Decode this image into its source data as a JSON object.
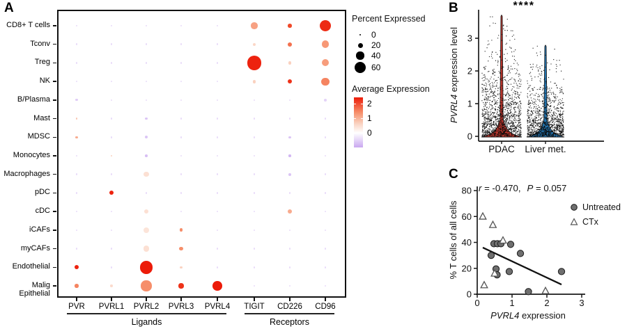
{
  "figure": {
    "panels": {
      "a": "A",
      "b": "B",
      "c": "C"
    }
  },
  "chart_data": [
    {
      "type": "bubble",
      "panel": "A",
      "rows": [
        "CD8+ T cells",
        "Tconv",
        "Treg",
        "NK",
        "B/Plasma",
        "Mast",
        "MDSC",
        "Monocytes",
        "Macrophages",
        "pDC",
        "cDC",
        "iCAFs",
        "myCAFs",
        "Endothelial",
        "Malig Epithelial"
      ],
      "columns": [
        "PVR",
        "PVRL1",
        "PVRL2",
        "PVRL3",
        "PVRL4",
        "TIGIT",
        "CD226",
        "CD96"
      ],
      "column_groups": [
        {
          "label": "Ligands",
          "cols": [
            0,
            4
          ]
        },
        {
          "label": "Receptors",
          "cols": [
            5,
            7
          ]
        }
      ],
      "size_legend": {
        "title": "Percent Expressed",
        "values": [
          0,
          20,
          40,
          60
        ]
      },
      "color_legend": {
        "title": "Average Expression",
        "ticks": [
          2,
          1,
          0
        ],
        "max_color": "#EC1B09",
        "zero_color": "#FFFFFF",
        "min_color": "#C9A8F0"
      },
      "default_dot": {
        "pct": 2,
        "avg": -0.25
      },
      "dots": [
        {
          "r": 0,
          "c": 5,
          "pct": 25,
          "avg": 1.0
        },
        {
          "r": 0,
          "c": 6,
          "pct": 12,
          "avg": 1.9
        },
        {
          "r": 0,
          "c": 7,
          "pct": 48,
          "avg": 2.3
        },
        {
          "r": 1,
          "c": 5,
          "pct": 8,
          "avg": 0.45
        },
        {
          "r": 1,
          "c": 6,
          "pct": 13,
          "avg": 1.5
        },
        {
          "r": 1,
          "c": 7,
          "pct": 30,
          "avg": 1.1
        },
        {
          "r": 2,
          "c": 5,
          "pct": 65,
          "avg": 2.4
        },
        {
          "r": 2,
          "c": 6,
          "pct": 9,
          "avg": 0.5
        },
        {
          "r": 2,
          "c": 7,
          "pct": 28,
          "avg": 1.05
        },
        {
          "r": 3,
          "c": 5,
          "pct": 10,
          "avg": 0.5
        },
        {
          "r": 3,
          "c": 6,
          "pct": 14,
          "avg": 2.2
        },
        {
          "r": 3,
          "c": 7,
          "pct": 32,
          "avg": 1.3
        },
        {
          "r": 4,
          "c": 0,
          "pct": 4,
          "avg": -0.35
        },
        {
          "r": 4,
          "c": 7,
          "pct": 6,
          "avg": -0.3
        },
        {
          "r": 5,
          "c": 0,
          "pct": 3,
          "avg": 0.6
        },
        {
          "r": 5,
          "c": 2,
          "pct": 6,
          "avg": -0.4
        },
        {
          "r": 6,
          "c": 0,
          "pct": 4,
          "avg": 0.9
        },
        {
          "r": 6,
          "c": 2,
          "pct": 8,
          "avg": -0.4
        },
        {
          "r": 6,
          "c": 6,
          "pct": 4,
          "avg": -0.4
        },
        {
          "r": 7,
          "c": 1,
          "pct": 2,
          "avg": 0.5
        },
        {
          "r": 7,
          "c": 2,
          "pct": 6,
          "avg": -0.45
        },
        {
          "r": 7,
          "c": 6,
          "pct": 4,
          "avg": -0.5
        },
        {
          "r": 8,
          "c": 2,
          "pct": 18,
          "avg": 0.35
        },
        {
          "r": 8,
          "c": 6,
          "pct": 6,
          "avg": -0.4
        },
        {
          "r": 9,
          "c": 1,
          "pct": 14,
          "avg": 2.4
        },
        {
          "r": 10,
          "c": 2,
          "pct": 14,
          "avg": 0.35
        },
        {
          "r": 10,
          "c": 6,
          "pct": 13,
          "avg": 0.9
        },
        {
          "r": 11,
          "c": 2,
          "pct": 20,
          "avg": 0.3
        },
        {
          "r": 11,
          "c": 3,
          "pct": 10,
          "avg": 1.2
        },
        {
          "r": 12,
          "c": 2,
          "pct": 24,
          "avg": 0.35
        },
        {
          "r": 12,
          "c": 3,
          "pct": 12,
          "avg": 1.2
        },
        {
          "r": 13,
          "c": 0,
          "pct": 14,
          "avg": 2.4
        },
        {
          "r": 13,
          "c": 2,
          "pct": 58,
          "avg": 2.5
        },
        {
          "r": 13,
          "c": 3,
          "pct": 4,
          "avg": 0.5
        },
        {
          "r": 14,
          "c": 0,
          "pct": 12,
          "avg": 1.3
        },
        {
          "r": 14,
          "c": 1,
          "pct": 5,
          "avg": 0.4
        },
        {
          "r": 14,
          "c": 2,
          "pct": 45,
          "avg": 1.2
        },
        {
          "r": 14,
          "c": 3,
          "pct": 18,
          "avg": 2.2
        },
        {
          "r": 14,
          "c": 4,
          "pct": 40,
          "avg": 2.5
        }
      ]
    },
    {
      "type": "violin",
      "panel": "B",
      "significance": "****",
      "ylabel_gene": "PVRL4",
      "ylabel_rest": " expression level",
      "yticks": [
        0,
        1,
        2,
        3
      ],
      "ylim": [
        0,
        3.9
      ],
      "groups": [
        {
          "label": "PDAC",
          "color": "#B5342B",
          "max_value": 3.75
        },
        {
          "label": "Liver met.",
          "color": "#2273AE",
          "max_value": 2.83
        }
      ]
    },
    {
      "type": "scatter",
      "panel": "C",
      "annotation": {
        "r_var": "r",
        "r_rest": " = -0.470,",
        "p_var": "P",
        "p_rest": " = 0.057"
      },
      "xlabel_gene": "PVRL4",
      "xlabel_rest": " expression",
      "ylabel": "% T cells of all cells",
      "xticks": [
        0,
        1,
        2,
        3
      ],
      "yticks": [
        0,
        20,
        40,
        60,
        80
      ],
      "xlim": [
        0,
        3
      ],
      "ylim": [
        0,
        80
      ],
      "legend": [
        {
          "label": "Untreated",
          "marker": "circle"
        },
        {
          "label": "CTx",
          "marker": "triangle"
        }
      ],
      "series": [
        {
          "name": "Untreated",
          "marker": "circle",
          "points": [
            [
              0.4,
              30
            ],
            [
              0.48,
              39
            ],
            [
              0.58,
              39
            ],
            [
              0.68,
              39
            ],
            [
              0.96,
              38.5
            ],
            [
              1.24,
              31.5
            ],
            [
              0.54,
              19.5
            ],
            [
              0.57,
              15
            ],
            [
              0.92,
              17.5
            ],
            [
              1.47,
              2
            ],
            [
              2.42,
              17.5
            ]
          ]
        },
        {
          "name": "CTx",
          "marker": "triangle",
          "points": [
            [
              0.16,
              60
            ],
            [
              0.45,
              53.5
            ],
            [
              0.74,
              41.5
            ],
            [
              0.5,
              16
            ],
            [
              0.2,
              7
            ],
            [
              1.96,
              2.5
            ]
          ]
        }
      ],
      "trendline": {
        "x1": 0.16,
        "y1": 36,
        "x2": 2.42,
        "y2": 7.5
      }
    }
  ]
}
